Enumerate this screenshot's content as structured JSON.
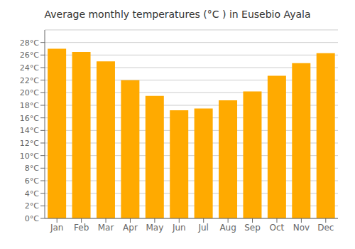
{
  "chart_data": {
    "type": "bar",
    "title": "Average monthly temperatures (°C ) in Eusebio Ayala",
    "categories": [
      "Jan",
      "Feb",
      "Mar",
      "Apr",
      "May",
      "Jun",
      "Jul",
      "Aug",
      "Sep",
      "Oct",
      "Nov",
      "Dec"
    ],
    "values": [
      27.0,
      26.5,
      25.0,
      22.0,
      19.5,
      17.2,
      17.5,
      18.8,
      20.2,
      22.7,
      24.7,
      26.3
    ],
    "color": "#FFAA00",
    "ylim": [
      0,
      30
    ],
    "yticks": [
      {
        "value": 0,
        "label": "0°C"
      },
      {
        "value": 2,
        "label": "2°C"
      },
      {
        "value": 4,
        "label": "4°C"
      },
      {
        "value": 6,
        "label": "6°C"
      },
      {
        "value": 8,
        "label": "8°C"
      },
      {
        "value": 10,
        "label": "10°C"
      },
      {
        "value": 12,
        "label": "12°C"
      },
      {
        "value": 14,
        "label": "14°C"
      },
      {
        "value": 16,
        "label": "16°C"
      },
      {
        "value": 18,
        "label": "18°C"
      },
      {
        "value": 20,
        "label": "20°C"
      },
      {
        "value": 22,
        "label": "22°C"
      },
      {
        "value": 24,
        "label": "24°C"
      },
      {
        "value": 26,
        "label": "26°C"
      },
      {
        "value": 28,
        "label": "28°C"
      }
    ],
    "grid": true
  }
}
